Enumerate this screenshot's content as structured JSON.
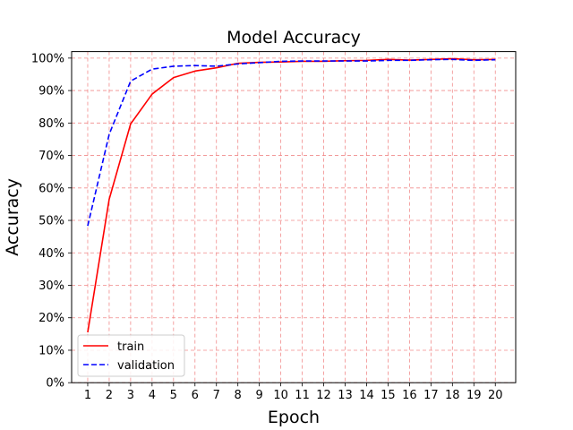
{
  "chart_data": {
    "type": "line",
    "title": "Model Accuracy",
    "xlabel": "Epoch",
    "ylabel": "Accuracy",
    "x": [
      1,
      2,
      3,
      4,
      5,
      6,
      7,
      8,
      9,
      10,
      11,
      12,
      13,
      14,
      15,
      16,
      17,
      18,
      19,
      20
    ],
    "x_ticks": [
      "1",
      "2",
      "3",
      "4",
      "5",
      "6",
      "7",
      "8",
      "9",
      "10",
      "11",
      "12",
      "13",
      "14",
      "15",
      "16",
      "17",
      "18",
      "19",
      "20"
    ],
    "y_ticks": [
      "0%",
      "10%",
      "20%",
      "30%",
      "40%",
      "50%",
      "60%",
      "70%",
      "80%",
      "90%",
      "100%"
    ],
    "ylim": [
      0,
      1.02
    ],
    "xlim": [
      0.25,
      20.95
    ],
    "grid": true,
    "grid_color": "#f08080",
    "legend_position": "lower-left",
    "series": [
      {
        "name": "train",
        "color": "#ff0000",
        "line_style": "solid",
        "values": [
          0.155,
          0.565,
          0.797,
          0.889,
          0.94,
          0.96,
          0.97,
          0.984,
          0.987,
          0.988,
          0.99,
          0.99,
          0.992,
          0.993,
          0.996,
          0.994,
          0.996,
          0.998,
          0.995,
          0.996
        ]
      },
      {
        "name": "validation",
        "color": "#0000ff",
        "line_style": "dashed",
        "values": [
          0.483,
          0.765,
          0.929,
          0.966,
          0.975,
          0.977,
          0.975,
          0.982,
          0.986,
          0.99,
          0.991,
          0.991,
          0.991,
          0.991,
          0.993,
          0.993,
          0.995,
          0.996,
          0.993,
          0.995
        ]
      }
    ]
  }
}
